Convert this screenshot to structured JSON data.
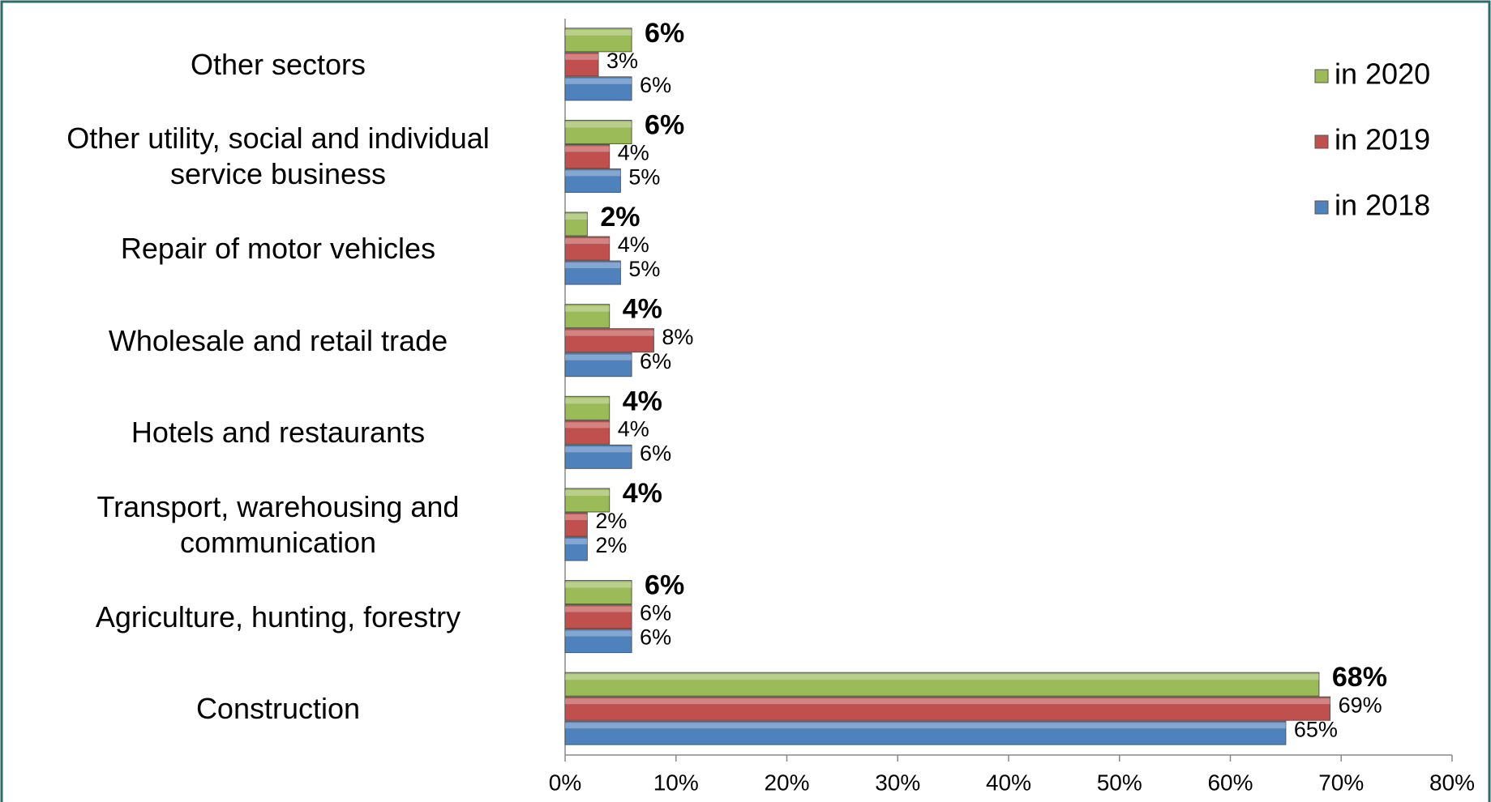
{
  "chart_data": {
    "type": "hbar",
    "categories": [
      "Other sectors",
      "Other utility, social and individual\nservice business",
      "Repair of motor vehicles",
      "Wholesale and retail trade",
      "Hotels and restaurants",
      "Transport, warehousing and\ncommunication",
      "Agriculture, hunting, forestry",
      "Construction"
    ],
    "series": [
      {
        "name": "in 2020",
        "color": "#9bbb59",
        "values": [
          6,
          6,
          2,
          4,
          4,
          4,
          6,
          68
        ],
        "value_labels": [
          "6%",
          "6%",
          "2%",
          "4%",
          "4%",
          "4%",
          "6%",
          "68%"
        ]
      },
      {
        "name": "in 2019",
        "color": "#c0504d",
        "values": [
          3,
          4,
          4,
          8,
          4,
          2,
          6,
          69
        ],
        "value_labels": [
          "3%",
          "4%",
          "4%",
          "8%",
          "4%",
          "2%",
          "6%",
          "69%"
        ]
      },
      {
        "name": "in 2018",
        "color": "#4f81bd",
        "values": [
          6,
          5,
          5,
          6,
          6,
          2,
          6,
          65
        ],
        "value_labels": [
          "6%",
          "5%",
          "5%",
          "6%",
          "6%",
          "2%",
          "6%",
          "65%"
        ]
      }
    ],
    "xlim": [
      0,
      80
    ],
    "xticks": [
      {
        "value": 0,
        "label": "0%"
      },
      {
        "value": 10,
        "label": "10%"
      },
      {
        "value": 20,
        "label": "20%"
      },
      {
        "value": 30,
        "label": "30%"
      },
      {
        "value": 40,
        "label": "40%"
      },
      {
        "value": 50,
        "label": "50%"
      },
      {
        "value": 60,
        "label": "60%"
      },
      {
        "value": 70,
        "label": "70%"
      },
      {
        "value": 80,
        "label": "80%"
      }
    ],
    "legend": "top-right"
  }
}
